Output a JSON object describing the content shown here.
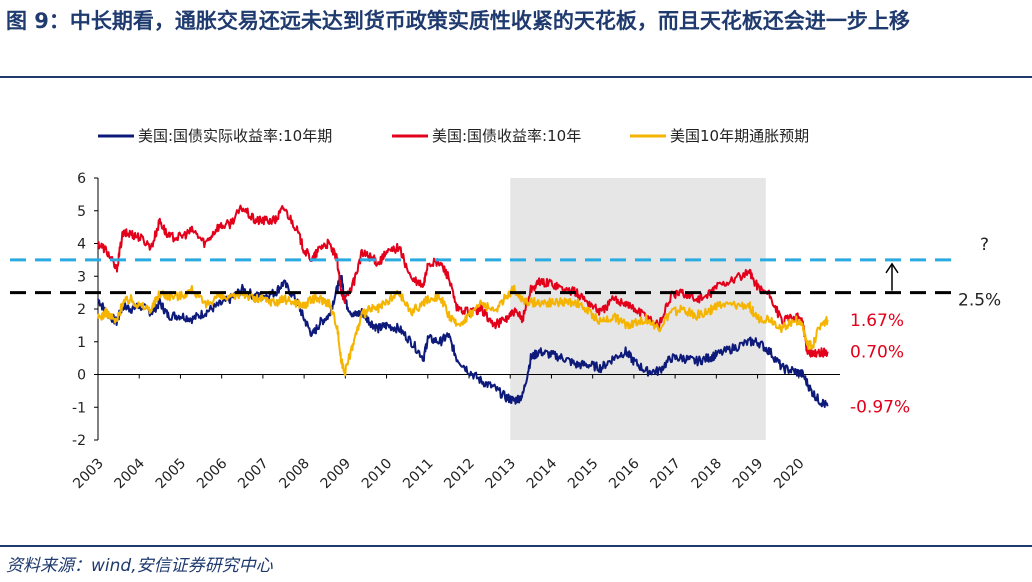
{
  "header": {
    "title": "图 9：中长期看，通胀交易还远未达到货币政策实质性收紧的天花板，而且天花板还会进一步上移"
  },
  "source": "资料来源：wind,安信证券研究中心",
  "chart_data": {
    "type": "line",
    "title": "",
    "xlabel": "",
    "ylabel": "",
    "xlim": [
      2003,
      2021
    ],
    "ylim": [
      -2,
      6
    ],
    "yticks": [
      -2,
      -1,
      0,
      1,
      2,
      3,
      4,
      5,
      6
    ],
    "xticks": [
      "2003",
      "2004",
      "2005",
      "2006",
      "2007",
      "2008",
      "2009",
      "2010",
      "2011",
      "2012",
      "2013",
      "2014",
      "2015",
      "2016",
      "2017",
      "2018",
      "2019",
      "2020"
    ],
    "legend_position": "top",
    "shaded_region": [
      2013,
      2019.2
    ],
    "reference_lines": [
      {
        "y": 3.5,
        "label": "?",
        "color": "#29abe2"
      },
      {
        "y": 2.5,
        "label": "2.5%",
        "color": "#000000"
      }
    ],
    "annotations": [
      {
        "text": "1.67%",
        "y": 1.67,
        "color": "#e3001b"
      },
      {
        "text": "0.70%",
        "y": 0.7,
        "color": "#e3001b"
      },
      {
        "text": "-0.97%",
        "y": -0.97,
        "color": "#e3001b"
      }
    ],
    "series": [
      {
        "name": "美国:国债实际收益率:10年期",
        "color": "#0d1a7a",
        "points": [
          [
            2003.0,
            2.3
          ],
          [
            2003.2,
            1.9
          ],
          [
            2003.45,
            1.6
          ],
          [
            2003.6,
            2.1
          ],
          [
            2003.8,
            2.0
          ],
          [
            2004.0,
            2.1
          ],
          [
            2004.3,
            1.9
          ],
          [
            2004.5,
            2.2
          ],
          [
            2004.7,
            1.8
          ],
          [
            2005.0,
            1.8
          ],
          [
            2005.3,
            1.7
          ],
          [
            2005.6,
            1.9
          ],
          [
            2005.9,
            2.1
          ],
          [
            2006.2,
            2.3
          ],
          [
            2006.5,
            2.6
          ],
          [
            2006.8,
            2.4
          ],
          [
            2007.0,
            2.4
          ],
          [
            2007.3,
            2.5
          ],
          [
            2007.5,
            2.8
          ],
          [
            2007.8,
            2.3
          ],
          [
            2008.0,
            1.7
          ],
          [
            2008.2,
            1.2
          ],
          [
            2008.4,
            1.6
          ],
          [
            2008.6,
            1.8
          ],
          [
            2008.8,
            2.6
          ],
          [
            2008.9,
            3.0
          ],
          [
            2009.0,
            2.2
          ],
          [
            2009.2,
            1.8
          ],
          [
            2009.4,
            1.9
          ],
          [
            2009.6,
            1.6
          ],
          [
            2009.8,
            1.4
          ],
          [
            2010.0,
            1.5
          ],
          [
            2010.3,
            1.4
          ],
          [
            2010.6,
            1.0
          ],
          [
            2010.9,
            0.5
          ],
          [
            2011.0,
            1.1
          ],
          [
            2011.3,
            1.0
          ],
          [
            2011.5,
            1.2
          ],
          [
            2011.7,
            0.5
          ],
          [
            2012.0,
            0.1
          ],
          [
            2012.3,
            -0.2
          ],
          [
            2012.6,
            -0.4
          ],
          [
            2012.9,
            -0.7
          ],
          [
            2013.1,
            -0.8
          ],
          [
            2013.3,
            -0.65
          ],
          [
            2013.5,
            0.5
          ],
          [
            2013.7,
            0.7
          ],
          [
            2014.0,
            0.6
          ],
          [
            2014.3,
            0.5
          ],
          [
            2014.6,
            0.3
          ],
          [
            2014.9,
            0.3
          ],
          [
            2015.2,
            0.2
          ],
          [
            2015.5,
            0.5
          ],
          [
            2015.8,
            0.7
          ],
          [
            2016.0,
            0.4
          ],
          [
            2016.3,
            0.1
          ],
          [
            2016.6,
            0.1
          ],
          [
            2016.9,
            0.5
          ],
          [
            2017.2,
            0.5
          ],
          [
            2017.5,
            0.4
          ],
          [
            2017.8,
            0.5
          ],
          [
            2018.0,
            0.6
          ],
          [
            2018.4,
            0.8
          ],
          [
            2018.8,
            1.0
          ],
          [
            2019.0,
            1.0
          ],
          [
            2019.3,
            0.7
          ],
          [
            2019.6,
            0.2
          ],
          [
            2019.9,
            0.1
          ],
          [
            2020.1,
            0.0
          ],
          [
            2020.3,
            -0.5
          ],
          [
            2020.5,
            -0.8
          ],
          [
            2020.7,
            -0.97
          ]
        ]
      },
      {
        "name": "美国:国债收益率:10年",
        "color": "#e3001b",
        "points": [
          [
            2003.0,
            4.0
          ],
          [
            2003.2,
            3.8
          ],
          [
            2003.45,
            3.2
          ],
          [
            2003.6,
            4.3
          ],
          [
            2003.8,
            4.3
          ],
          [
            2004.0,
            4.2
          ],
          [
            2004.3,
            3.9
          ],
          [
            2004.5,
            4.7
          ],
          [
            2004.7,
            4.2
          ],
          [
            2005.0,
            4.2
          ],
          [
            2005.3,
            4.4
          ],
          [
            2005.6,
            4.0
          ],
          [
            2005.9,
            4.5
          ],
          [
            2006.2,
            4.6
          ],
          [
            2006.5,
            5.1
          ],
          [
            2006.8,
            4.7
          ],
          [
            2007.0,
            4.7
          ],
          [
            2007.3,
            4.7
          ],
          [
            2007.5,
            5.1
          ],
          [
            2007.8,
            4.5
          ],
          [
            2008.0,
            3.8
          ],
          [
            2008.2,
            3.5
          ],
          [
            2008.4,
            3.9
          ],
          [
            2008.6,
            4.0
          ],
          [
            2008.8,
            3.5
          ],
          [
            2008.9,
            2.5
          ],
          [
            2009.0,
            2.3
          ],
          [
            2009.2,
            2.8
          ],
          [
            2009.4,
            3.7
          ],
          [
            2009.6,
            3.6
          ],
          [
            2009.8,
            3.4
          ],
          [
            2010.0,
            3.7
          ],
          [
            2010.3,
            3.9
          ],
          [
            2010.6,
            2.9
          ],
          [
            2010.9,
            2.7
          ],
          [
            2011.0,
            3.4
          ],
          [
            2011.3,
            3.4
          ],
          [
            2011.5,
            3.0
          ],
          [
            2011.7,
            2.0
          ],
          [
            2012.0,
            1.9
          ],
          [
            2012.3,
            2.0
          ],
          [
            2012.6,
            1.5
          ],
          [
            2012.9,
            1.7
          ],
          [
            2013.1,
            1.9
          ],
          [
            2013.3,
            1.7
          ],
          [
            2013.5,
            2.6
          ],
          [
            2013.7,
            2.8
          ],
          [
            2014.0,
            2.8
          ],
          [
            2014.3,
            2.6
          ],
          [
            2014.6,
            2.5
          ],
          [
            2014.9,
            2.2
          ],
          [
            2015.2,
            1.9
          ],
          [
            2015.5,
            2.3
          ],
          [
            2015.8,
            2.2
          ],
          [
            2016.0,
            2.0
          ],
          [
            2016.3,
            1.8
          ],
          [
            2016.6,
            1.5
          ],
          [
            2016.9,
            2.4
          ],
          [
            2017.2,
            2.5
          ],
          [
            2017.5,
            2.3
          ],
          [
            2017.8,
            2.4
          ],
          [
            2018.0,
            2.7
          ],
          [
            2018.4,
            2.9
          ],
          [
            2018.8,
            3.1
          ],
          [
            2019.0,
            2.7
          ],
          [
            2019.3,
            2.4
          ],
          [
            2019.6,
            1.6
          ],
          [
            2019.9,
            1.8
          ],
          [
            2020.1,
            1.6
          ],
          [
            2020.2,
            0.7
          ],
          [
            2020.4,
            0.65
          ],
          [
            2020.7,
            0.7
          ]
        ]
      },
      {
        "name": "美国10年期通胀预期",
        "color": "#f5b400",
        "points": [
          [
            2003.0,
            1.7
          ],
          [
            2003.2,
            1.9
          ],
          [
            2003.45,
            1.6
          ],
          [
            2003.6,
            2.2
          ],
          [
            2003.8,
            2.3
          ],
          [
            2004.0,
            2.1
          ],
          [
            2004.3,
            2.0
          ],
          [
            2004.5,
            2.5
          ],
          [
            2004.7,
            2.4
          ],
          [
            2005.0,
            2.4
          ],
          [
            2005.3,
            2.6
          ],
          [
            2005.6,
            2.1
          ],
          [
            2005.9,
            2.4
          ],
          [
            2006.2,
            2.3
          ],
          [
            2006.5,
            2.5
          ],
          [
            2006.8,
            2.3
          ],
          [
            2007.0,
            2.3
          ],
          [
            2007.3,
            2.2
          ],
          [
            2007.5,
            2.3
          ],
          [
            2007.8,
            2.2
          ],
          [
            2008.0,
            2.1
          ],
          [
            2008.2,
            2.3
          ],
          [
            2008.4,
            2.3
          ],
          [
            2008.6,
            2.2
          ],
          [
            2008.8,
            1.5
          ],
          [
            2008.9,
            0.4
          ],
          [
            2009.0,
            0.1
          ],
          [
            2009.2,
            1.0
          ],
          [
            2009.4,
            1.8
          ],
          [
            2009.6,
            2.0
          ],
          [
            2009.8,
            2.0
          ],
          [
            2010.0,
            2.2
          ],
          [
            2010.3,
            2.5
          ],
          [
            2010.6,
            1.9
          ],
          [
            2010.9,
            2.2
          ],
          [
            2011.0,
            2.3
          ],
          [
            2011.3,
            2.4
          ],
          [
            2011.5,
            1.8
          ],
          [
            2011.7,
            1.5
          ],
          [
            2012.0,
            1.8
          ],
          [
            2012.3,
            2.2
          ],
          [
            2012.6,
            1.9
          ],
          [
            2012.9,
            2.4
          ],
          [
            2013.1,
            2.6
          ],
          [
            2013.3,
            2.3
          ],
          [
            2013.5,
            2.2
          ],
          [
            2013.7,
            2.2
          ],
          [
            2014.0,
            2.2
          ],
          [
            2014.3,
            2.2
          ],
          [
            2014.6,
            2.2
          ],
          [
            2014.9,
            1.9
          ],
          [
            2015.2,
            1.6
          ],
          [
            2015.5,
            1.8
          ],
          [
            2015.8,
            1.5
          ],
          [
            2016.0,
            1.6
          ],
          [
            2016.3,
            1.7
          ],
          [
            2016.6,
            1.4
          ],
          [
            2016.9,
            1.9
          ],
          [
            2017.2,
            2.0
          ],
          [
            2017.5,
            1.8
          ],
          [
            2017.8,
            1.9
          ],
          [
            2018.0,
            2.1
          ],
          [
            2018.4,
            2.1
          ],
          [
            2018.8,
            2.1
          ],
          [
            2019.0,
            1.7
          ],
          [
            2019.3,
            1.7
          ],
          [
            2019.6,
            1.4
          ],
          [
            2019.9,
            1.7
          ],
          [
            2020.1,
            1.5
          ],
          [
            2020.2,
            0.9
          ],
          [
            2020.35,
            0.9
          ],
          [
            2020.5,
            1.5
          ],
          [
            2020.7,
            1.67
          ]
        ]
      }
    ]
  }
}
